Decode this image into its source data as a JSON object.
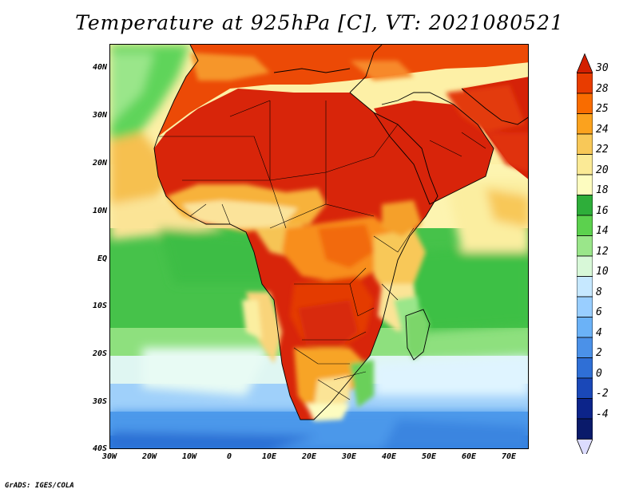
{
  "title": "Temperature at 925hPa [C], VT: 2021080521",
  "credit": "GrADS: IGES/COLA",
  "map": {
    "lat_labels": [
      "40N",
      "30N",
      "20N",
      "10N",
      "EQ",
      "10S",
      "20S",
      "30S",
      "40S"
    ],
    "lon_labels": [
      "30W",
      "20W",
      "10W",
      "0",
      "10E",
      "20E",
      "30E",
      "40E",
      "50E",
      "60E",
      "70E"
    ]
  },
  "colorbar": {
    "labels": [
      "30",
      "28",
      "25",
      "24",
      "22",
      "20",
      "18",
      "16",
      "14",
      "12",
      "10",
      "8",
      "6",
      "4",
      "2",
      "0",
      "-2",
      "-4"
    ],
    "colors": [
      "#d31f00",
      "#e83c00",
      "#f96c00",
      "#fba21e",
      "#f8c858",
      "#fbea96",
      "#fdfcc0",
      "#2eae3a",
      "#5cd14e",
      "#9ae68a",
      "#d8f8d8",
      "#c6e8ff",
      "#99ceff",
      "#6bb2f7",
      "#4b91e8",
      "#2f6fd6",
      "#1a48b8",
      "#0c248a",
      "#0a1a6a",
      "#dcdcff"
    ]
  },
  "colors": {
    "sea_cool": "#9fd4ff",
    "sea_mild": "#66d166",
    "land_hot": "#e02a00"
  }
}
